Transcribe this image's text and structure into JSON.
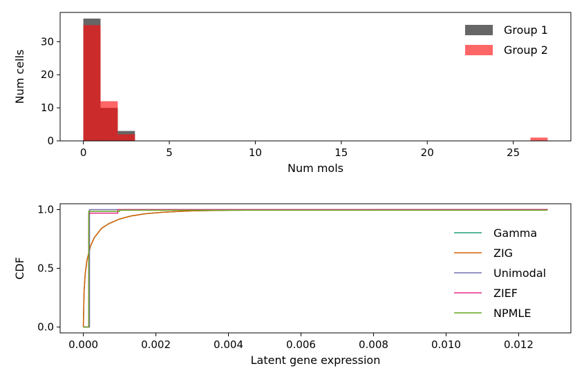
{
  "chart_data": [
    {
      "type": "bar",
      "xlabel": "Num mols",
      "ylabel": "Num cells",
      "xlim": [
        -1.35,
        28.35
      ],
      "ylim": [
        0,
        38.85
      ],
      "xticks": [
        0,
        5,
        10,
        15,
        20,
        25
      ],
      "yticks": [
        0,
        10,
        20,
        30
      ],
      "bin_width": 1,
      "series": [
        {
          "name": "Group 1",
          "color": "#666666",
          "bins": [
            {
              "x0": 0,
              "values": 37
            },
            {
              "x0": 1,
              "values": 10
            },
            {
              "x0": 2,
              "values": 3
            }
          ]
        },
        {
          "name": "Group 2",
          "color": "#ff6666",
          "bins": [
            {
              "x0": 0,
              "values": 35
            },
            {
              "x0": 1,
              "values": 12
            },
            {
              "x0": 2,
              "values": 2
            },
            {
              "x0": 26,
              "values": 1
            }
          ]
        }
      ],
      "overlap_color": "#cc2b2b",
      "legend": "top-right"
    },
    {
      "type": "line",
      "xlabel": "Latent gene expression",
      "ylabel": "CDF",
      "xlim": [
        -0.00064,
        0.01344
      ],
      "ylim": [
        -0.05,
        1.05
      ],
      "xticks": [
        "0.000",
        "0.002",
        "0.004",
        "0.006",
        "0.008",
        "0.010",
        "0.012"
      ],
      "yticks": [
        "0.0",
        "0.5",
        "1.0"
      ],
      "legend": "center-right",
      "series": [
        {
          "name": "Gamma",
          "color": "#1b9e77",
          "x": [
            0,
            2e-05,
            5e-05,
            0.0001,
            0.0002,
            0.0003,
            0.0005,
            0.0007,
            0.001,
            0.0013,
            0.0017,
            0.0022,
            0.003,
            0.004,
            0.006,
            0.0128
          ],
          "y": [
            0,
            0.3,
            0.45,
            0.57,
            0.69,
            0.76,
            0.84,
            0.88,
            0.92,
            0.945,
            0.965,
            0.978,
            0.99,
            0.995,
            0.998,
            1.0
          ]
        },
        {
          "name": "ZIG",
          "color": "#d95f02",
          "x": [
            0,
            2e-05,
            5e-05,
            0.0001,
            0.0002,
            0.0003,
            0.0005,
            0.0007,
            0.001,
            0.0013,
            0.0017,
            0.0022,
            0.003,
            0.004,
            0.006,
            0.0128
          ],
          "y": [
            0,
            0.3,
            0.45,
            0.57,
            0.69,
            0.76,
            0.84,
            0.88,
            0.92,
            0.945,
            0.965,
            0.978,
            0.99,
            0.995,
            0.998,
            1.0
          ]
        },
        {
          "name": "Unimodal",
          "color": "#7570b3",
          "x": [
            0,
            0.00017,
            0.00017,
            0.0128
          ],
          "y": [
            0,
            0,
            1.0,
            1.0
          ]
        },
        {
          "name": "ZIEF",
          "color": "#e7298a",
          "x": [
            0,
            0.00012,
            0.00012,
            0.0001,
            0.00015,
            0.00015,
            0.00095,
            0.00095,
            0.0128
          ],
          "y": [
            0,
            0,
            0.0,
            0.0,
            0.0,
            0.97,
            0.97,
            1.0,
            1.0
          ]
        },
        {
          "name": "NPMLE",
          "color": "#66a61e",
          "x": [
            0,
            0.00015,
            0.00015,
            0.001,
            0.001,
            0.0128
          ],
          "y": [
            0,
            0,
            0.985,
            0.985,
            0.995,
            0.995
          ]
        }
      ]
    }
  ]
}
